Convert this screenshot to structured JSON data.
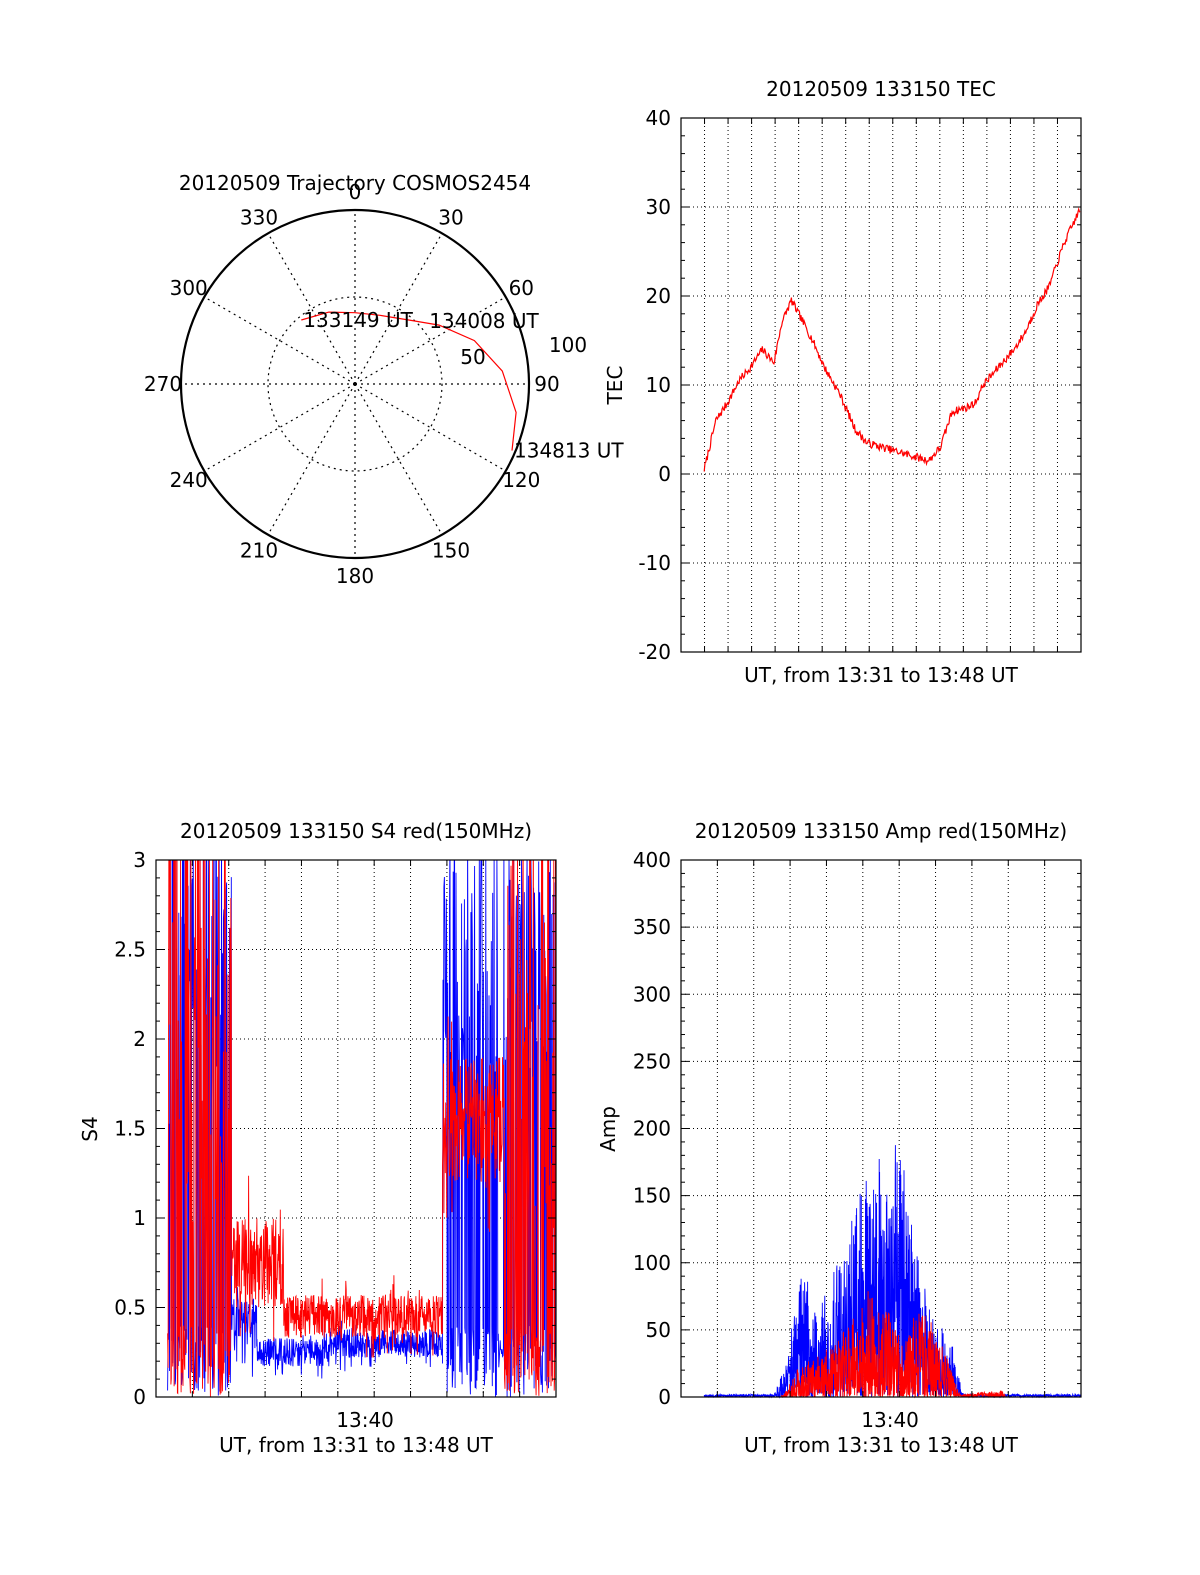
{
  "colors": {
    "red": "#ff0000",
    "blue": "#0000ff",
    "axis": "#000000",
    "grid": "#000000"
  },
  "chart_data": [
    {
      "id": "trajectory",
      "type": "polar",
      "title": "20120509 Trajectory COSMOS2454",
      "azimuth_labels": [
        "0",
        "30",
        "60",
        "90",
        "120",
        "150",
        "180",
        "210",
        "240",
        "270",
        "300",
        "330"
      ],
      "zenith_ring_labels": [
        "50",
        "100"
      ],
      "zenith_range": [
        0,
        100
      ],
      "trajectory_points": [
        {
          "az": -40,
          "zen": 48
        },
        {
          "az": -20,
          "zen": 44
        },
        {
          "az": 0,
          "zen": 41
        },
        {
          "az": 20,
          "zen": 42
        },
        {
          "az": 40,
          "zen": 48
        },
        {
          "az": 55,
          "zen": 59
        },
        {
          "az": 70,
          "zen": 73
        },
        {
          "az": 85,
          "zen": 85
        },
        {
          "az": 100,
          "zen": 94
        },
        {
          "az": 113,
          "zen": 98
        }
      ],
      "annotations": [
        {
          "text": "133149 UT",
          "az": -40,
          "zen": 48
        },
        {
          "text": "134008 UT",
          "az": 49,
          "zen": 55
        },
        {
          "text": "134813 UT",
          "az": 113,
          "zen": 98
        }
      ],
      "grid": true,
      "line_color": "#ff0000"
    },
    {
      "id": "tec",
      "type": "line",
      "title": "20120509 133150 TEC",
      "xlabel": "UT, from 13:31 to 13:48 UT",
      "ylabel": "TEC",
      "xlim": [
        "13:31:00",
        "13:48:13"
      ],
      "ylim": [
        -20,
        40
      ],
      "yticks": [
        "-20",
        "-10",
        "0",
        "10",
        "20",
        "30",
        "40"
      ],
      "grid": true,
      "series": [
        {
          "color": "#ff0000",
          "points": [
            [
              "13:32:00",
              0.5
            ],
            [
              "13:32:30",
              6
            ],
            [
              "13:33:00",
              8
            ],
            [
              "13:33:30",
              10.5
            ],
            [
              "13:34:00",
              12
            ],
            [
              "13:34:30",
              14
            ],
            [
              "13:35:00",
              12.5
            ],
            [
              "13:35:20",
              17
            ],
            [
              "13:35:45",
              19.5
            ],
            [
              "13:36:10",
              17.5
            ],
            [
              "13:36:40",
              15
            ],
            [
              "13:37:10",
              12
            ],
            [
              "13:37:50",
              9
            ],
            [
              "13:38:30",
              5
            ],
            [
              "13:39:00",
              3.5
            ],
            [
              "13:39:40",
              3
            ],
            [
              "13:40:20",
              2.5
            ],
            [
              "13:41:00",
              2
            ],
            [
              "13:41:40",
              1.5
            ],
            [
              "13:42:10",
              3
            ],
            [
              "13:42:40",
              7
            ],
            [
              "13:43:20",
              7.5
            ],
            [
              "13:43:40",
              8
            ],
            [
              "13:44:00",
              10
            ],
            [
              "13:44:40",
              12
            ],
            [
              "13:45:20",
              14
            ],
            [
              "13:45:50",
              16
            ],
            [
              "13:46:20",
              19
            ],
            [
              "13:46:50",
              21
            ],
            [
              "13:47:30",
              26
            ],
            [
              "13:48:13",
              30
            ]
          ]
        }
      ]
    },
    {
      "id": "s4",
      "type": "line",
      "title": "20120509 133150 S4 red(150MHz)",
      "xlabel": "UT, from 13:31 to 13:48 UT",
      "ylabel": "S4",
      "xlim": [
        "13:31:00",
        "13:48:13"
      ],
      "ylim": [
        0,
        3
      ],
      "yticks": [
        "0",
        "0.5",
        "1",
        "1.5",
        "2",
        "2.5",
        "3"
      ],
      "xticks": [
        "13:40"
      ],
      "grid": true,
      "series": [
        {
          "color": "#0000ff",
          "segments": [
            {
              "from": "13:31:30",
              "to": "13:34:15",
              "level": 2.2,
              "noise": 1.3,
              "kind": "spiky"
            },
            {
              "from": "13:34:15",
              "to": "13:35:20",
              "level": 0.4,
              "noise": 0.15,
              "kind": "noise"
            },
            {
              "from": "13:35:20",
              "to": "13:38:30",
              "level": 0.25,
              "noise": 0.08,
              "kind": "noise"
            },
            {
              "from": "13:38:30",
              "to": "13:43:20",
              "level": 0.3,
              "noise": 0.08,
              "kind": "noise"
            },
            {
              "from": "13:43:20",
              "to": "13:48:13",
              "level": 2.2,
              "noise": 0.7,
              "kind": "spiky"
            }
          ]
        },
        {
          "color": "#ff0000",
          "segments": [
            {
              "from": "13:31:30",
              "to": "13:34:15",
              "level": 1.8,
              "noise": 1.5,
              "kind": "spiky"
            },
            {
              "from": "13:34:15",
              "to": "13:36:30",
              "level": 0.75,
              "noise": 0.25,
              "kind": "noise"
            },
            {
              "from": "13:36:30",
              "to": "13:43:20",
              "level": 0.45,
              "noise": 0.12,
              "kind": "noise"
            },
            {
              "from": "13:43:20",
              "to": "13:46:00",
              "level": 1.55,
              "noise": 0.35,
              "kind": "noise"
            },
            {
              "from": "13:46:00",
              "to": "13:48:13",
              "level": 1.8,
              "noise": 1.5,
              "kind": "spiky"
            }
          ]
        }
      ]
    },
    {
      "id": "amp",
      "type": "line",
      "title": "20120509 133150 Amp red(150MHz)",
      "xlabel": "UT, from 13:31 to 13:48 UT",
      "ylabel": "Amp",
      "xlim": [
        "13:31:00",
        "13:48:13"
      ],
      "ylim": [
        0,
        400
      ],
      "yticks": [
        "0",
        "50",
        "100",
        "150",
        "200",
        "250",
        "300",
        "350",
        "400"
      ],
      "xticks": [
        "13:40"
      ],
      "grid": true,
      "series": [
        {
          "color": "#0000ff",
          "envelope": [
            [
              "13:32:00",
              2
            ],
            [
              "13:35:00",
              2
            ],
            [
              "13:35:30",
              25
            ],
            [
              "13:36:15",
              100
            ],
            [
              "13:36:45",
              65
            ],
            [
              "13:37:30",
              90
            ],
            [
              "13:38:15",
              130
            ],
            [
              "13:39:00",
              170
            ],
            [
              "13:39:30",
              185
            ],
            [
              "13:39:50",
              150
            ],
            [
              "13:40:20",
              210
            ],
            [
              "13:40:50",
              140
            ],
            [
              "13:41:20",
              90
            ],
            [
              "13:42:00",
              60
            ],
            [
              "13:42:40",
              40
            ],
            [
              "13:43:10",
              2
            ],
            [
              "13:48:13",
              2
            ]
          ]
        },
        {
          "color": "#ff0000",
          "envelope": [
            [
              "13:35:20",
              0
            ],
            [
              "13:36:00",
              20
            ],
            [
              "13:36:45",
              30
            ],
            [
              "13:37:30",
              40
            ],
            [
              "13:38:30",
              60
            ],
            [
              "13:39:00",
              80
            ],
            [
              "13:39:30",
              70
            ],
            [
              "13:40:00",
              65
            ],
            [
              "13:40:30",
              40
            ],
            [
              "13:41:10",
              65
            ],
            [
              "13:41:40",
              60
            ],
            [
              "13:42:20",
              35
            ],
            [
              "13:43:00",
              2
            ],
            [
              "13:44:50",
              5
            ],
            [
              "13:45:00",
              0
            ]
          ]
        }
      ]
    }
  ]
}
